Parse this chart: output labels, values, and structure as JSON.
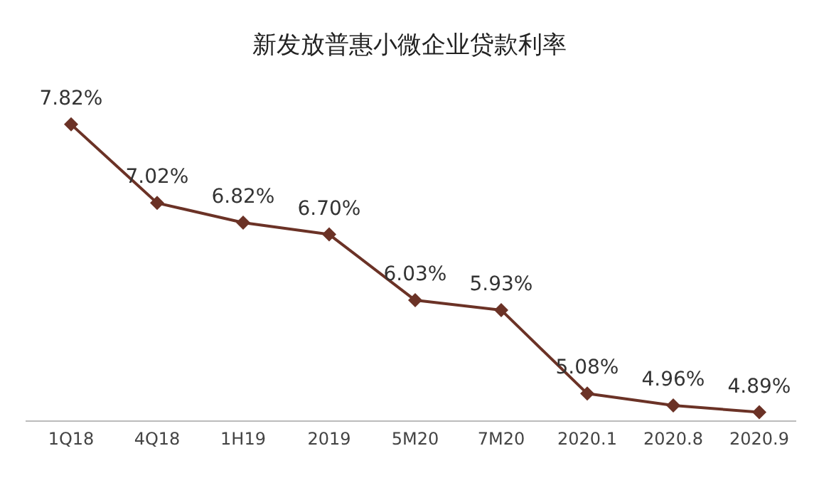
{
  "chart_data": {
    "type": "line",
    "title": "新发放普惠小微企业贷款利率",
    "categories": [
      "1Q18",
      "4Q18",
      "1H19",
      "2019",
      "5M20",
      "7M20",
      "2020.1",
      "2020.8",
      "2020.9"
    ],
    "series": [
      {
        "color": "#6b3226",
        "values": [
          7.82,
          7.02,
          6.82,
          6.7,
          6.03,
          5.93,
          5.08,
          4.96,
          4.89
        ],
        "value_labels": [
          "7.82%",
          "7.02%",
          "6.82%",
          "6.70%",
          "6.03%",
          "5.93%",
          "5.08%",
          "4.96%",
          "4.89%"
        ]
      }
    ],
    "tick_labels": "x",
    "marker": "diamond",
    "line_style": "solid",
    "grid": false,
    "legend": false
  }
}
